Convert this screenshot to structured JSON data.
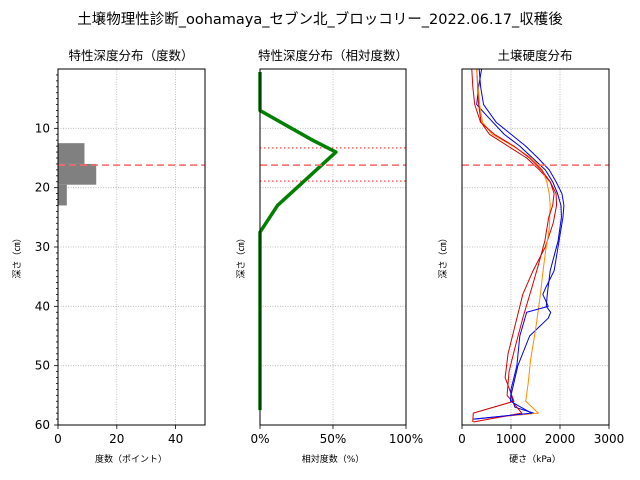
{
  "figure_title": "土壌物理性診断_oohamaya_セブン北_ブロッコリー_2022.06.17_収穫後",
  "colors": {
    "bar": "#808080",
    "curve": "#008000",
    "reference": "#ff6666",
    "grid": "#b0b0b0",
    "series": [
      "#0000cc",
      "#cc0000",
      "#ff8c00",
      "#dd0000",
      "#0000ff"
    ]
  },
  "chart_data": [
    {
      "type": "bar",
      "orientation": "horizontal",
      "title": "特性深度分布（度数）",
      "xlabel": "度数（ポイント）",
      "ylabel": "深さ（㎝）",
      "xlim": [
        0,
        50
      ],
      "ylim": [
        60,
        0
      ],
      "x_ticks": [
        "0",
        "20",
        "40"
      ],
      "y_ticks": [
        "10",
        "20",
        "30",
        "40",
        "50",
        "60"
      ],
      "grid": true,
      "bars": [
        {
          "depth_from": 12.5,
          "depth_to": 16,
          "value": 9
        },
        {
          "depth_from": 16,
          "depth_to": 19.5,
          "value": 13
        },
        {
          "depth_from": 19.5,
          "depth_to": 23,
          "value": 3
        }
      ],
      "reference_line_depth": 16.2
    },
    {
      "type": "line",
      "title": "特性深度分布（相対度数）",
      "xlabel": "相対度数（%）",
      "ylabel": "深さ（㎝）",
      "xlim": [
        0,
        100
      ],
      "ylim": [
        60,
        0
      ],
      "x_ticks": [
        "0%",
        "50%",
        "100%"
      ],
      "grid": true,
      "series": [
        {
          "x": [
            0,
            0,
            36,
            52,
            12,
            0,
            0
          ],
          "y": [
            0.5,
            7,
            12,
            14,
            23,
            27.5,
            57.5
          ]
        }
      ],
      "reference_line_depth": 16.2,
      "reference_band_depths": [
        13.3,
        18.9
      ]
    },
    {
      "type": "line",
      "title": "土壌硬度分布",
      "xlabel": "硬さ（kPa）",
      "ylabel": "深さ（㎝）",
      "xlim": [
        0,
        3000
      ],
      "ylim": [
        60,
        0
      ],
      "x_ticks": [
        "0",
        "1000",
        "2000",
        "3000"
      ],
      "grid": true,
      "reference_line_depth": 16.2,
      "series": [
        {
          "x": [
            400,
            340,
            300,
            520,
            860,
            1180,
            1440,
            1700,
            1850,
            1950,
            2020,
            2030,
            1960,
            1800,
            1740,
            1720,
            1810,
            1760,
            1380,
            1140,
            1000,
            1080,
            1460,
            230
          ],
          "y": [
            0,
            3,
            6,
            8,
            11,
            13,
            15,
            17,
            19,
            21,
            23,
            25,
            29,
            34,
            38,
            40,
            41,
            42,
            45,
            50,
            55,
            57,
            58,
            59
          ]
        },
        {
          "x": [
            300,
            320,
            340,
            390,
            560,
            940,
            1320,
            1580,
            1800,
            1920,
            1930,
            1860,
            1700,
            1450,
            1240,
            1060,
            940,
            880,
            1060,
            230,
            220
          ],
          "y": [
            0,
            3,
            6,
            9,
            11,
            13,
            15,
            17,
            19,
            21,
            23,
            26,
            30,
            34,
            38,
            44,
            48,
            52,
            56,
            58,
            59.5
          ]
        },
        {
          "x": [
            300,
            330,
            360,
            420,
            620,
            1040,
            1420,
            1640,
            1730,
            1780,
            1800,
            1780,
            1700,
            1640,
            1600,
            1500,
            1400,
            1350,
            1300,
            1560,
            260
          ],
          "y": [
            0,
            3,
            6,
            9,
            11,
            13,
            15,
            17,
            19,
            21,
            23,
            27,
            31,
            35,
            38,
            44,
            49,
            53,
            56,
            58,
            59
          ]
        },
        {
          "x": [
            200,
            220,
            260,
            380,
            660,
            1060,
            1380,
            1620,
            1800,
            1880,
            1850,
            1770,
            1690,
            1560,
            1420,
            1240,
            1080,
            960,
            920,
            1220,
            230
          ],
          "y": [
            0,
            3,
            6,
            9,
            11,
            13,
            15,
            17,
            19,
            21,
            23,
            25,
            29,
            33,
            37,
            42,
            47,
            51,
            55,
            58,
            59.5
          ]
        },
        {
          "x": [
            350,
            380,
            440,
            700,
            1000,
            1300,
            1550,
            1780,
            1920,
            2040,
            2080,
            2060,
            2000,
            1940,
            1880,
            1760,
            1700,
            1650,
            1760,
            1320,
            1180,
            1120,
            1000,
            990,
            1420,
            260
          ],
          "y": [
            0,
            3,
            6,
            9,
            11,
            13,
            15,
            17,
            19,
            21,
            23,
            25,
            28,
            31,
            34,
            36,
            37,
            38,
            40,
            41,
            45,
            50,
            54,
            56,
            58,
            59
          ]
        }
      ]
    }
  ]
}
